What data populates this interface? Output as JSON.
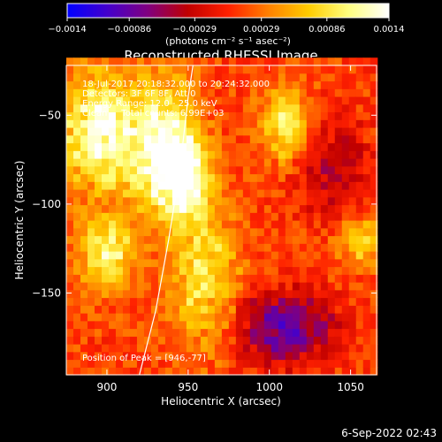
{
  "chart_data": {
    "type": "heatmap",
    "title": "Reconstructed RHESSI Image",
    "xlabel": "Heliocentric X (arcsec)",
    "ylabel": "Heliocentric Y (arcsec)",
    "xlim": [
      875,
      1066
    ],
    "ylim": [
      -196,
      -22
    ],
    "xticks": [
      900,
      950,
      1000,
      1050
    ],
    "yticks": [
      -50,
      -100,
      -150
    ],
    "xtick_labels": [
      "900",
      "950",
      "1000",
      "1050"
    ],
    "ytick_labels": [
      "−50",
      "−100",
      "−150"
    ],
    "colorbar": {
      "range": [
        -0.0014,
        0.0014
      ],
      "ticks": [
        -0.0014,
        -0.00086,
        -0.00029,
        0.00029,
        0.00086,
        0.0014
      ],
      "tick_labels": [
        "−0.0014",
        "−0.00086",
        "−0.00029",
        "0.00029",
        "0.00086",
        "0.0014"
      ],
      "unit_label": "(photons cm⁻² s⁻¹ asec⁻²)",
      "colors": [
        "#0000ff",
        "#4400cc",
        "#800080",
        "#c00000",
        "#ff2000",
        "#ff8000",
        "#ffcc00",
        "#ffff80",
        "#ffffff"
      ]
    },
    "annotations": [
      "18-Jul-2017 20:18:32.000 to 20:24:32.000",
      "Detectors: 3F 6F 8F, Att 0",
      "Energy Range: 12.0 - 25.0 keV",
      "Clean     Total counts: 6.99E+03"
    ],
    "peak_label": "Position of Peak = [946,-77]",
    "peak": [
      946,
      -77
    ],
    "limb": [
      [
        920,
        -196
      ],
      [
        930,
        -160
      ],
      [
        938,
        -120
      ],
      [
        945,
        -80
      ],
      [
        950,
        -40
      ],
      [
        953,
        -22
      ]
    ],
    "sources": [
      {
        "x": 895,
        "y": -60,
        "amp": 0.0012,
        "sx": 16,
        "sy": 22
      },
      {
        "x": 935,
        "y": -68,
        "amp": 0.0013,
        "sx": 14,
        "sy": 26
      },
      {
        "x": 948,
        "y": -85,
        "amp": 0.0011,
        "sx": 10,
        "sy": 14
      },
      {
        "x": 900,
        "y": -128,
        "amp": 0.0009,
        "sx": 12,
        "sy": 14
      },
      {
        "x": 960,
        "y": -140,
        "amp": 0.0008,
        "sx": 14,
        "sy": 28
      },
      {
        "x": 1010,
        "y": -55,
        "amp": 0.0009,
        "sx": 10,
        "sy": 14
      },
      {
        "x": 1055,
        "y": -120,
        "amp": 0.0007,
        "sx": 9,
        "sy": 10
      },
      {
        "x": 1010,
        "y": -170,
        "amp": -0.0011,
        "sx": 20,
        "sy": 14
      },
      {
        "x": 1040,
        "y": -80,
        "amp": -0.0005,
        "sx": 16,
        "sy": 20
      }
    ]
  },
  "footer": {
    "date_stamp": "6-Sep-2022 02:43"
  }
}
